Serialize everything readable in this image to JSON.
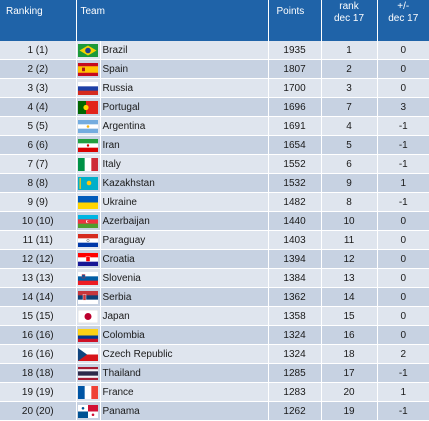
{
  "header": {
    "ranking": "Ranking",
    "team": "Team",
    "points": "Points",
    "rank_line1": "rank",
    "rank_line2": "dec 17",
    "pm_line1": "+/-",
    "pm_line2": "dec 17"
  },
  "rows": [
    {
      "ranking": "1 (1)",
      "team": "Brazil",
      "points": "1935",
      "rank": "1",
      "pm": "0",
      "flag": "brazil-flag-icon"
    },
    {
      "ranking": "2 (2)",
      "team": "Spain",
      "points": "1807",
      "rank": "2",
      "pm": "0",
      "flag": "spain-flag-icon"
    },
    {
      "ranking": "3 (3)",
      "team": "Russia",
      "points": "1700",
      "rank": "3",
      "pm": "0",
      "flag": "russia-flag-icon"
    },
    {
      "ranking": "4 (4)",
      "team": "Portugal",
      "points": "1696",
      "rank": "7",
      "pm": "3",
      "flag": "portugal-flag-icon"
    },
    {
      "ranking": "5 (5)",
      "team": "Argentina",
      "points": "1691",
      "rank": "4",
      "pm": "-1",
      "flag": "argentina-flag-icon"
    },
    {
      "ranking": "6 (6)",
      "team": "Iran",
      "points": "1654",
      "rank": "5",
      "pm": "-1",
      "flag": "iran-flag-icon"
    },
    {
      "ranking": "7 (7)",
      "team": "Italy",
      "points": "1552",
      "rank": "6",
      "pm": "-1",
      "flag": "italy-flag-icon"
    },
    {
      "ranking": "8 (8)",
      "team": "Kazakhstan",
      "points": "1532",
      "rank": "9",
      "pm": "1",
      "flag": "kazakhstan-flag-icon"
    },
    {
      "ranking": "9 (9)",
      "team": "Ukraine",
      "points": "1482",
      "rank": "8",
      "pm": "-1",
      "flag": "ukraine-flag-icon"
    },
    {
      "ranking": "10 (10)",
      "team": "Azerbaijan",
      "points": "1440",
      "rank": "10",
      "pm": "0",
      "flag": "azerbaijan-flag-icon"
    },
    {
      "ranking": "11 (11)",
      "team": "Paraguay",
      "points": "1403",
      "rank": "11",
      "pm": "0",
      "flag": "paraguay-flag-icon"
    },
    {
      "ranking": "12 (12)",
      "team": "Croatia",
      "points": "1394",
      "rank": "12",
      "pm": "0",
      "flag": "croatia-flag-icon"
    },
    {
      "ranking": "13 (13)",
      "team": "Slovenia",
      "points": "1384",
      "rank": "13",
      "pm": "0",
      "flag": "slovenia-flag-icon"
    },
    {
      "ranking": "14 (14)",
      "team": "Serbia",
      "points": "1362",
      "rank": "14",
      "pm": "0",
      "flag": "serbia-flag-icon"
    },
    {
      "ranking": "15 (15)",
      "team": "Japan",
      "points": "1358",
      "rank": "15",
      "pm": "0",
      "flag": "japan-flag-icon"
    },
    {
      "ranking": "16 (16)",
      "team": "Colombia",
      "points": "1324",
      "rank": "16",
      "pm": "0",
      "flag": "colombia-flag-icon"
    },
    {
      "ranking": "16 (16)",
      "team": "Czech Republic",
      "points": "1324",
      "rank": "18",
      "pm": "2",
      "flag": "czech-flag-icon"
    },
    {
      "ranking": "18 (18)",
      "team": "Thailand",
      "points": "1285",
      "rank": "17",
      "pm": "-1",
      "flag": "thailand-flag-icon"
    },
    {
      "ranking": "19 (19)",
      "team": "France",
      "points": "1283",
      "rank": "20",
      "pm": "1",
      "flag": "france-flag-icon"
    },
    {
      "ranking": "20 (20)",
      "team": "Panama",
      "points": "1262",
      "rank": "19",
      "pm": "-1",
      "flag": "panama-flag-icon"
    }
  ]
}
